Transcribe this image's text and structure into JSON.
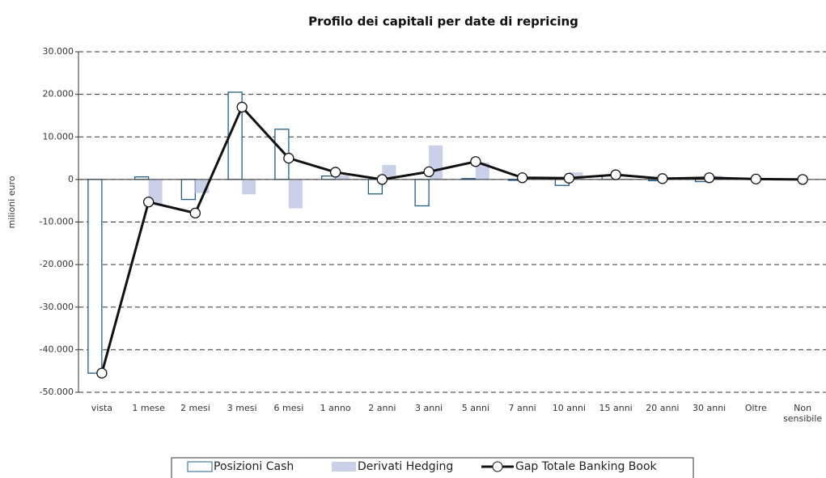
{
  "chart_data": {
    "type": "bar-line",
    "title": "Profilo dei capitali per date di repricing",
    "y_label": "milioni euro",
    "categories": [
      "vista",
      "1 mese",
      "2 mesi",
      "3 mesi",
      "6 mesi",
      "1 anno",
      "2 anni",
      "3 anni",
      "5 anni",
      "7 anni",
      "10 anni",
      "15 anni",
      "20 anni",
      "30 anni",
      "Oltre",
      "Non sensibile"
    ],
    "series": [
      {
        "name": "Posizioni Cash",
        "kind": "bar",
        "color": "#1f5f8b",
        "values": [
          -45500,
          600,
          -4700,
          20500,
          11800,
          800,
          -3400,
          -6200,
          200,
          -200,
          -1400,
          1000,
          -300,
          -500,
          0,
          0
        ]
      },
      {
        "name": "Derivati Hedging",
        "kind": "bar",
        "color": "#c9d0e8",
        "values": [
          0,
          -5800,
          -3200,
          -3500,
          -6800,
          1000,
          3400,
          8000,
          4000,
          600,
          1700,
          200,
          400,
          800,
          200,
          0
        ]
      },
      {
        "name": "Gap Totale Banking Book",
        "kind": "line",
        "color": "#111111",
        "values": [
          -45500,
          -5300,
          -7900,
          17000,
          5000,
          1700,
          0,
          1800,
          4200,
          400,
          300,
          1100,
          200,
          400,
          100,
          0
        ]
      }
    ],
    "ylim": [
      -50000,
      30000
    ],
    "yticks": [
      {
        "value": -50000,
        "label": "-50.000"
      },
      {
        "value": -40000,
        "label": "-40.000"
      },
      {
        "value": -30000,
        "label": "-30.000"
      },
      {
        "value": -20000,
        "label": "-20.000"
      },
      {
        "value": -10000,
        "label": "-10.000"
      },
      0,
      {
        "value": 10000,
        "label": "10.000"
      },
      {
        "value": 20000,
        "label": "20.000"
      },
      {
        "value": 30000,
        "label": "30.000"
      }
    ],
    "grid": true
  }
}
